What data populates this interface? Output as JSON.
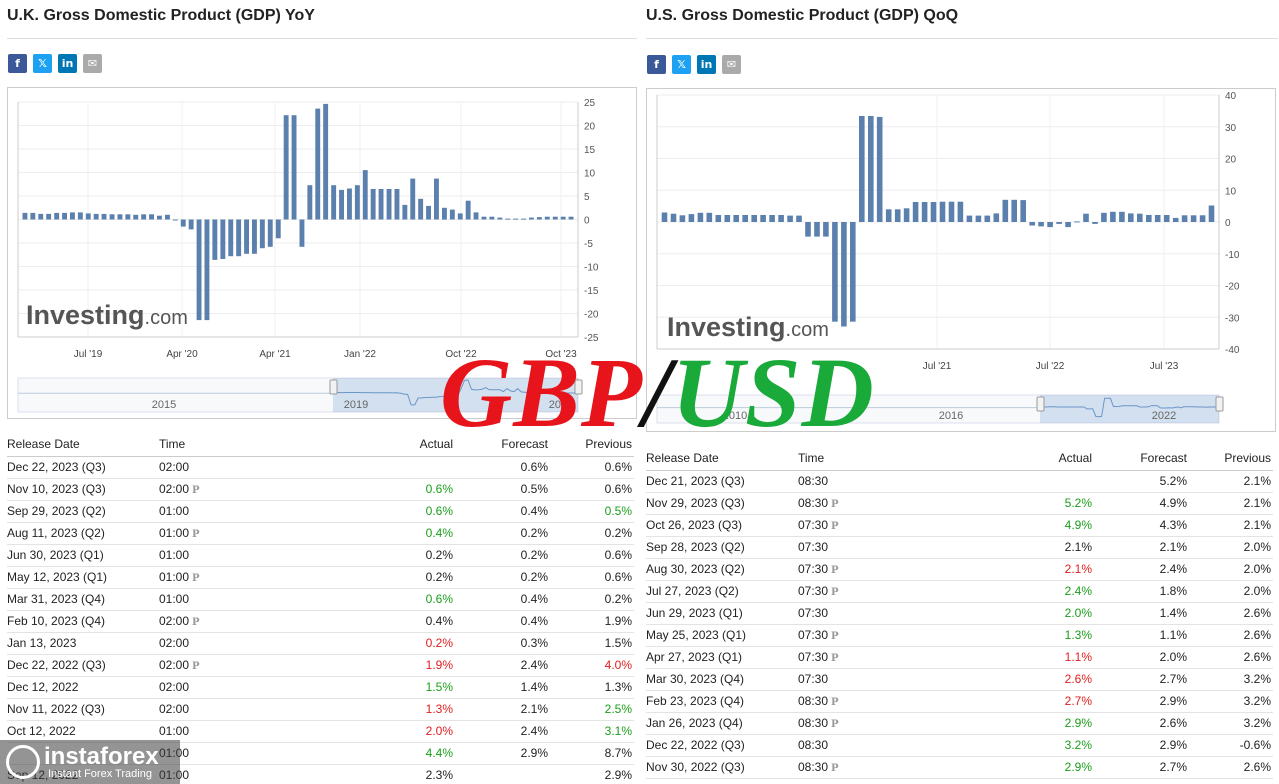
{
  "left": {
    "title": "U.K. Gross Domestic Product (GDP) YoY",
    "logo_main": "Investing",
    "logo_suffix": ".com",
    "table": {
      "headers": [
        "Release Date",
        "Time",
        "Actual",
        "Forecast",
        "Previous"
      ],
      "rows": [
        {
          "date": "Dec 22, 2023 (Q3)",
          "time": "02:00",
          "p": "",
          "actual": "",
          "actual_color": "black",
          "forecast": "0.6%",
          "previous": "0.6%",
          "prev_color": "black"
        },
        {
          "date": "Nov 10, 2023 (Q3)",
          "time": "02:00",
          "p": "P",
          "actual": "0.6%",
          "actual_color": "green",
          "forecast": "0.5%",
          "previous": "0.6%",
          "prev_color": "black"
        },
        {
          "date": "Sep 29, 2023 (Q2)",
          "time": "01:00",
          "p": "",
          "actual": "0.6%",
          "actual_color": "green",
          "forecast": "0.4%",
          "previous": "0.5%",
          "prev_color": "green"
        },
        {
          "date": "Aug 11, 2023 (Q2)",
          "time": "01:00",
          "p": "P",
          "actual": "0.4%",
          "actual_color": "green",
          "forecast": "0.2%",
          "previous": "0.2%",
          "prev_color": "black"
        },
        {
          "date": "Jun 30, 2023 (Q1)",
          "time": "01:00",
          "p": "",
          "actual": "0.2%",
          "actual_color": "black",
          "forecast": "0.2%",
          "previous": "0.6%",
          "prev_color": "black"
        },
        {
          "date": "May 12, 2023 (Q1)",
          "time": "01:00",
          "p": "P",
          "actual": "0.2%",
          "actual_color": "black",
          "forecast": "0.2%",
          "previous": "0.6%",
          "prev_color": "black"
        },
        {
          "date": "Mar 31, 2023 (Q4)",
          "time": "01:00",
          "p": "",
          "actual": "0.6%",
          "actual_color": "green",
          "forecast": "0.4%",
          "previous": "0.2%",
          "prev_color": "black"
        },
        {
          "date": "Feb 10, 2023 (Q4)",
          "time": "02:00",
          "p": "P",
          "actual": "0.4%",
          "actual_color": "black",
          "forecast": "0.4%",
          "previous": "1.9%",
          "prev_color": "black"
        },
        {
          "date": "Jan 13, 2023",
          "time": "02:00",
          "p": "",
          "actual": "0.2%",
          "actual_color": "red",
          "forecast": "0.3%",
          "previous": "1.5%",
          "prev_color": "black"
        },
        {
          "date": "Dec 22, 2022 (Q3)",
          "time": "02:00",
          "p": "P",
          "actual": "1.9%",
          "actual_color": "red",
          "forecast": "2.4%",
          "previous": "4.0%",
          "prev_color": "red"
        },
        {
          "date": "Dec 12, 2022",
          "time": "02:00",
          "p": "",
          "actual": "1.5%",
          "actual_color": "green",
          "forecast": "1.4%",
          "previous": "1.3%",
          "prev_color": "black"
        },
        {
          "date": "Nov 11, 2022 (Q3)",
          "time": "02:00",
          "p": "",
          "actual": "1.3%",
          "actual_color": "red",
          "forecast": "2.1%",
          "previous": "2.5%",
          "prev_color": "green"
        },
        {
          "date": "Oct 12, 2022",
          "time": "01:00",
          "p": "",
          "actual": "2.0%",
          "actual_color": "red",
          "forecast": "2.4%",
          "previous": "3.1%",
          "prev_color": "green"
        },
        {
          "date": "",
          "time": "01:00",
          "p": "",
          "actual": "4.4%",
          "actual_color": "green",
          "forecast": "2.9%",
          "previous": "8.7%",
          "prev_color": "black"
        },
        {
          "date": "Sep 12, 2022",
          "time": "01:00",
          "p": "",
          "actual": "2.3%",
          "actual_color": "black",
          "forecast": "",
          "previous": "2.9%",
          "prev_color": "black"
        }
      ]
    }
  },
  "right": {
    "title": "U.S. Gross Domestic Product (GDP) QoQ",
    "logo_main": "Investing",
    "logo_suffix": ".com",
    "table": {
      "headers": [
        "Release Date",
        "Time",
        "Actual",
        "Forecast",
        "Previous"
      ],
      "rows": [
        {
          "date": "Dec 21, 2023 (Q3)",
          "time": "08:30",
          "p": "",
          "actual": "",
          "actual_color": "black",
          "forecast": "5.2%",
          "previous": "2.1%",
          "prev_color": "black"
        },
        {
          "date": "Nov 29, 2023 (Q3)",
          "time": "08:30",
          "p": "P",
          "actual": "5.2%",
          "actual_color": "green",
          "forecast": "4.9%",
          "previous": "2.1%",
          "prev_color": "black"
        },
        {
          "date": "Oct 26, 2023 (Q3)",
          "time": "07:30",
          "p": "P",
          "actual": "4.9%",
          "actual_color": "green",
          "forecast": "4.3%",
          "previous": "2.1%",
          "prev_color": "black"
        },
        {
          "date": "Sep 28, 2023 (Q2)",
          "time": "07:30",
          "p": "",
          "actual": "2.1%",
          "actual_color": "black",
          "forecast": "2.1%",
          "previous": "2.0%",
          "prev_color": "black"
        },
        {
          "date": "Aug 30, 2023 (Q2)",
          "time": "07:30",
          "p": "P",
          "actual": "2.1%",
          "actual_color": "red",
          "forecast": "2.4%",
          "previous": "2.0%",
          "prev_color": "black"
        },
        {
          "date": "Jul 27, 2023 (Q2)",
          "time": "07:30",
          "p": "P",
          "actual": "2.4%",
          "actual_color": "green",
          "forecast": "1.8%",
          "previous": "2.0%",
          "prev_color": "black"
        },
        {
          "date": "Jun 29, 2023 (Q1)",
          "time": "07:30",
          "p": "",
          "actual": "2.0%",
          "actual_color": "green",
          "forecast": "1.4%",
          "previous": "2.6%",
          "prev_color": "black"
        },
        {
          "date": "May 25, 2023 (Q1)",
          "time": "07:30",
          "p": "P",
          "actual": "1.3%",
          "actual_color": "green",
          "forecast": "1.1%",
          "previous": "2.6%",
          "prev_color": "black"
        },
        {
          "date": "Apr 27, 2023 (Q1)",
          "time": "07:30",
          "p": "P",
          "actual": "1.1%",
          "actual_color": "red",
          "forecast": "2.0%",
          "previous": "2.6%",
          "prev_color": "black"
        },
        {
          "date": "Mar 30, 2023 (Q4)",
          "time": "07:30",
          "p": "",
          "actual": "2.6%",
          "actual_color": "red",
          "forecast": "2.7%",
          "previous": "3.2%",
          "prev_color": "black"
        },
        {
          "date": "Feb 23, 2023 (Q4)",
          "time": "08:30",
          "p": "P",
          "actual": "2.7%",
          "actual_color": "red",
          "forecast": "2.9%",
          "previous": "3.2%",
          "prev_color": "black"
        },
        {
          "date": "Jan 26, 2023 (Q4)",
          "time": "08:30",
          "p": "P",
          "actual": "2.9%",
          "actual_color": "green",
          "forecast": "2.6%",
          "previous": "3.2%",
          "prev_color": "black"
        },
        {
          "date": "Dec 22, 2022 (Q3)",
          "time": "08:30",
          "p": "",
          "actual": "3.2%",
          "actual_color": "green",
          "forecast": "2.9%",
          "previous": "-0.6%",
          "prev_color": "black"
        },
        {
          "date": "Nov 30, 2022 (Q3)",
          "time": "08:30",
          "p": "P",
          "actual": "2.9%",
          "actual_color": "green",
          "forecast": "2.7%",
          "previous": "2.6%",
          "prev_color": "black"
        }
      ]
    }
  },
  "overlay": {
    "gbp": "GBP",
    "slash": "/",
    "usd": "USD",
    "gbp_color": "#e8141b",
    "usd_color": "#1aaa3a"
  },
  "watermark": {
    "brand": "instaforex",
    "sub": "Instant Forex Trading"
  },
  "colors": {
    "bar": "#5b80ad",
    "facebook": "#3b5998",
    "twitter": "#1da1f2",
    "linkedin": "#0077b5",
    "email": "#aaaaaa"
  },
  "chart_data": [
    {
      "type": "bar",
      "ylim": [
        -25,
        25
      ],
      "yticks": [
        "25",
        "20",
        "15",
        "10",
        "5",
        "0",
        "-5",
        "-10",
        "-15",
        "-20",
        "-25"
      ],
      "xticks": [
        "Jul '19",
        "Apr '20",
        "Apr '21",
        "Jan '22",
        "Oct '22",
        "Oct '23"
      ],
      "navigator_labels": [
        "2015",
        "2019",
        "2023"
      ],
      "values": [
        1.4,
        1.4,
        1.2,
        1.2,
        1.4,
        1.4,
        1.5,
        1.5,
        1.3,
        1.2,
        1.2,
        1.1,
        1.1,
        1.1,
        1.0,
        1.1,
        1.1,
        0.8,
        1.0,
        0.0,
        -1.5,
        -2.1,
        -21.4,
        -21.4,
        -8.6,
        -8.4,
        -7.8,
        -7.8,
        -7.3,
        -7.3,
        -6.1,
        -5.8,
        -4.0,
        22.2,
        22.2,
        -5.8,
        7.3,
        23.6,
        24.6,
        7.3,
        6.3,
        6.6,
        7.3,
        10.5,
        6.5,
        6.5,
        6.5,
        6.5,
        3.1,
        8.7,
        4.4,
        2.9,
        8.7,
        2.5,
        2.1,
        1.3,
        4.0,
        1.5,
        0.6,
        0.6,
        0.4,
        0.2,
        0.2,
        0.2,
        0.4,
        0.5,
        0.6,
        0.6,
        0.6,
        0.6
      ]
    },
    {
      "type": "bar",
      "ylim": [
        -40,
        40
      ],
      "yticks": [
        "40",
        "30",
        "20",
        "10",
        "0",
        "-10",
        "-20",
        "-30",
        "-40"
      ],
      "xticks": [
        "Jul '21",
        "Jul '22",
        "Jul '23"
      ],
      "navigator_labels": [
        "2010",
        "2016",
        "2022"
      ],
      "values": [
        3.0,
        2.6,
        2.1,
        2.5,
        2.9,
        2.9,
        2.2,
        2.2,
        2.2,
        2.2,
        2.2,
        2.2,
        2.2,
        2.2,
        2.0,
        2.0,
        -4.6,
        -4.6,
        -4.6,
        -31.4,
        -32.9,
        -31.4,
        33.4,
        33.4,
        33.1,
        4.0,
        4.0,
        4.3,
        6.3,
        6.3,
        6.3,
        6.4,
        6.4,
        6.4,
        2.0,
        2.0,
        2.0,
        2.7,
        7.0,
        7.0,
        6.9,
        -1.1,
        -1.4,
        -1.6,
        -0.6,
        -1.6,
        0.2,
        2.6,
        -0.6,
        2.9,
        3.2,
        3.2,
        2.7,
        2.6,
        2.2,
        2.2,
        2.2,
        1.3,
        2.1,
        2.1,
        2.1,
        5.2
      ]
    }
  ]
}
